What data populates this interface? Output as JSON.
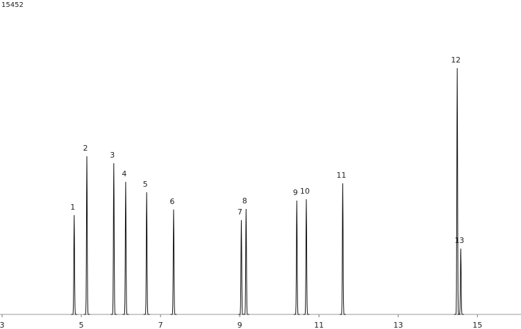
{
  "chart_data": {
    "type": "chromatogram",
    "peaks": {
      "labels": [
        "1",
        "2",
        "3",
        "4",
        "5",
        "6",
        "7",
        "8",
        "9",
        "10",
        "11",
        "12",
        "13"
      ],
      "x": [
        4.82,
        5.14,
        5.82,
        6.12,
        6.65,
        7.33,
        9.04,
        9.16,
        10.44,
        10.68,
        11.6,
        14.49,
        14.58
      ],
      "values": [
        4990,
        7950,
        7600,
        6660,
        6140,
        5270,
        4740,
        5300,
        5720,
        5790,
        6590,
        12380,
        3310
      ]
    },
    "color": "#111111",
    "xlim": [
      3,
      16.1
    ],
    "xticks": [
      3,
      5,
      7,
      9,
      11,
      13,
      15
    ],
    "ylim": [
      0,
      15452
    ],
    "yticks": [
      15452
    ]
  }
}
